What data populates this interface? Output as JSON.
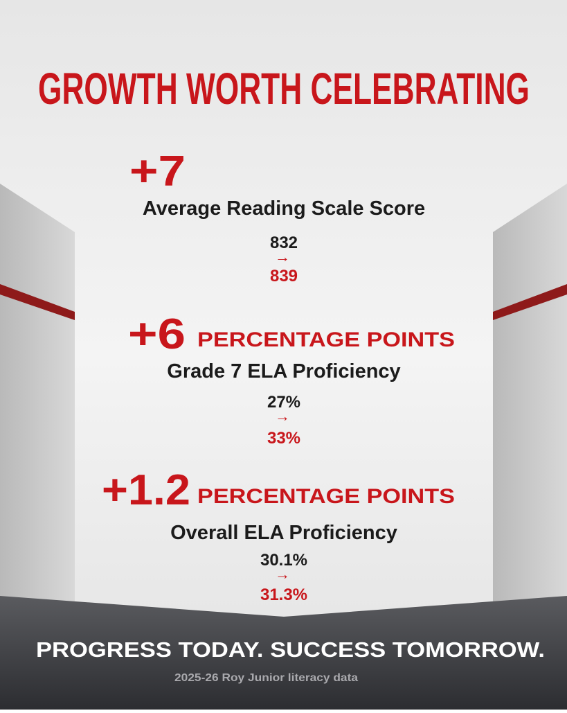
{
  "title": "GROWTH WORTH CELEBRATING",
  "stats": [
    {
      "change": "+7",
      "label": "Average Reading Scale Score",
      "from": "832",
      "arrow": "→",
      "to": "839"
    },
    {
      "change": "+6",
      "unit": "PERCENTAGE POINTS",
      "label": "Grade 7 ELA Proficiency",
      "from": "27%",
      "arrow": "→",
      "to": "33%"
    },
    {
      "change": "+1.2",
      "unit": "PERCENTAGE POINTS",
      "label": "Overall ELA Proficiency",
      "from": "30.1%",
      "arrow": "→",
      "to": "31.3%"
    }
  ],
  "footer": {
    "tagline": "PROGRESS TODAY. SUCCESS TOMORROW.",
    "source": "2025-26 Roy Junior literacy data"
  }
}
